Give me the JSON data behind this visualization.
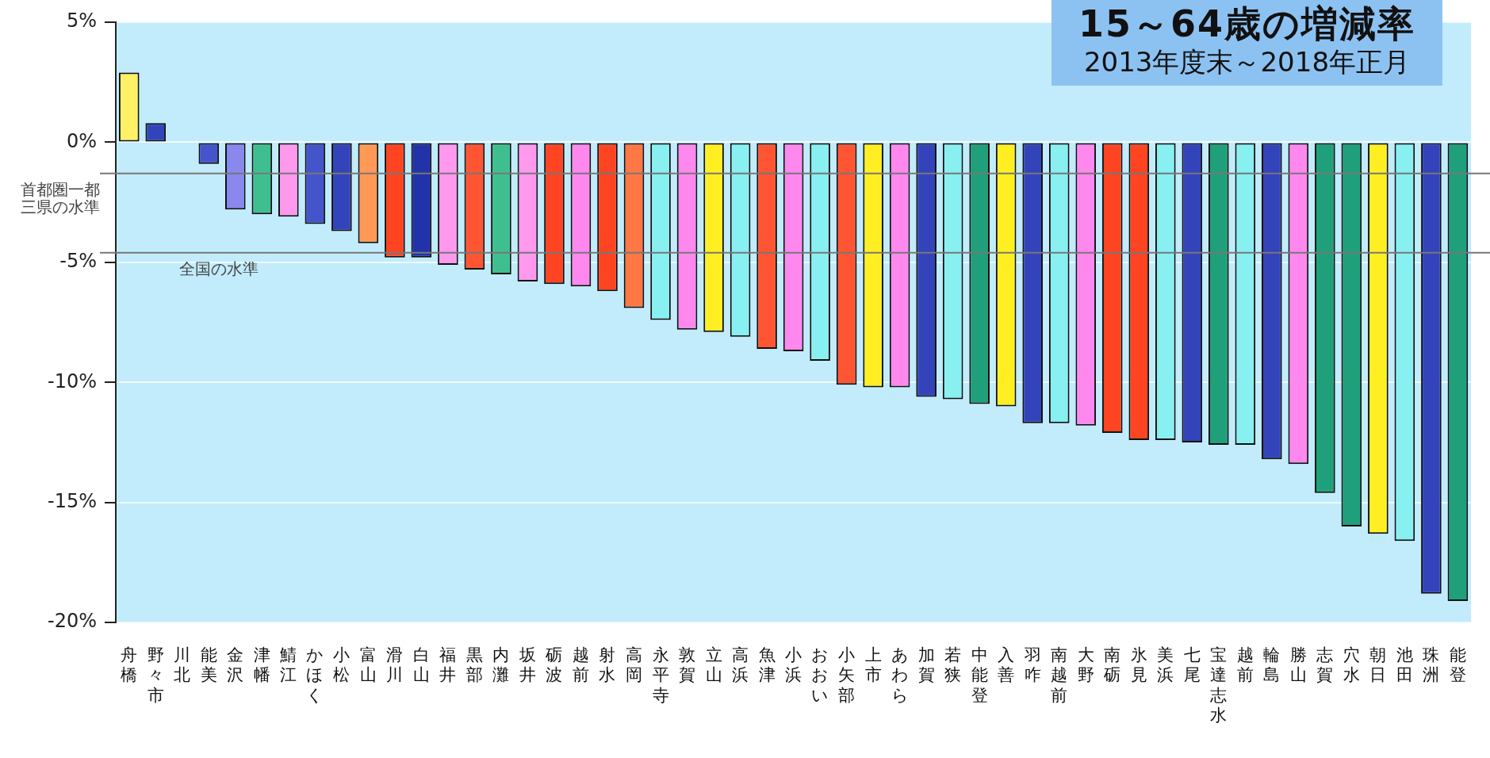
{
  "chart_data": {
    "type": "bar",
    "title": "15～64歳の増減率",
    "subtitle": "2013年度末～2018年正月",
    "categories": [
      "舟橋",
      "野々市",
      "川北",
      "能美",
      "金沢",
      "津幡",
      "鯖江",
      "かほく",
      "小松",
      "富山",
      "滑川",
      "白山",
      "福井",
      "黒部",
      "内灘",
      "坂井",
      "砺波",
      "越前",
      "射水",
      "高岡",
      "永平寺",
      "敦賀",
      "立山",
      "高浜",
      "魚津",
      "小浜",
      "おおい",
      "小矢部",
      "上市",
      "あわら",
      "加賀",
      "若狭",
      "中能登",
      "入善",
      "羽咋",
      "南越前",
      "大野",
      "南砺",
      "氷見",
      "美浜",
      "七尾",
      "宝達志水",
      "越前",
      "輪島",
      "勝山",
      "志賀",
      "穴水",
      "朝日",
      "池田",
      "珠洲",
      "能登"
    ],
    "values": [
      2.9,
      0.8,
      0,
      -0.9,
      -2.8,
      -3.0,
      -3.1,
      -3.4,
      -3.7,
      -4.2,
      -4.8,
      -4.8,
      -5.1,
      -5.3,
      -5.5,
      -5.8,
      -5.9,
      -6.0,
      -6.2,
      -6.9,
      -7.4,
      -7.8,
      -7.9,
      -8.1,
      -8.6,
      -8.7,
      -9.1,
      -10.1,
      -10.2,
      -10.2,
      -10.6,
      -10.7,
      -10.9,
      -11.0,
      -11.7,
      -11.7,
      -11.8,
      -12.1,
      -12.4,
      -12.4,
      -12.5,
      -12.6,
      -12.6,
      -13.2,
      -13.4,
      -14.6,
      -16.0,
      -16.3,
      -16.6,
      -18.8,
      -19.1
    ],
    "colors": [
      "#fff066",
      "#3344bb",
      "#3344bb",
      "#4455cc",
      "#8888ee",
      "#3fbf90",
      "#ff99ee",
      "#4455cc",
      "#3344bb",
      "#ff9955",
      "#ff4422",
      "#2233aa",
      "#ff99ee",
      "#ff5533",
      "#3fbf90",
      "#ff99ee",
      "#ff4422",
      "#ff88ee",
      "#ff4422",
      "#ff7744",
      "#88f0f0",
      "#ff88ee",
      "#ffee22",
      "#88f0f0",
      "#ff5533",
      "#ff88ee",
      "#88f0f0",
      "#ff5533",
      "#ffee22",
      "#ff88ee",
      "#3344bb",
      "#88f0f0",
      "#1fa07a",
      "#ffee22",
      "#3344bb",
      "#88f0f0",
      "#ff88ee",
      "#ff4422",
      "#ff4422",
      "#88f0f0",
      "#3344bb",
      "#1fa07a",
      "#88f0f0",
      "#3344bb",
      "#ff88ee",
      "#1fa07a",
      "#1fa07a",
      "#ffee22",
      "#88f0f0",
      "#3344bb",
      "#1fa07a"
    ],
    "ylim": [
      -20,
      5
    ],
    "yticks": [
      {
        "value": 5,
        "label": "5%"
      },
      {
        "value": 0,
        "label": "0%"
      },
      {
        "value": -5,
        "label": "-5%"
      },
      {
        "value": -10,
        "label": "-10%"
      },
      {
        "value": -15,
        "label": "-15%"
      },
      {
        "value": -20,
        "label": "-20%"
      }
    ],
    "grid": "y",
    "legend": false,
    "ref_lines": [
      {
        "axis": "y",
        "value": -1.3,
        "label": "首都圏一都三県の水準",
        "color": "#777777"
      },
      {
        "axis": "y",
        "value": -4.6,
        "label": "全国の水準",
        "color": "#777777"
      }
    ]
  }
}
